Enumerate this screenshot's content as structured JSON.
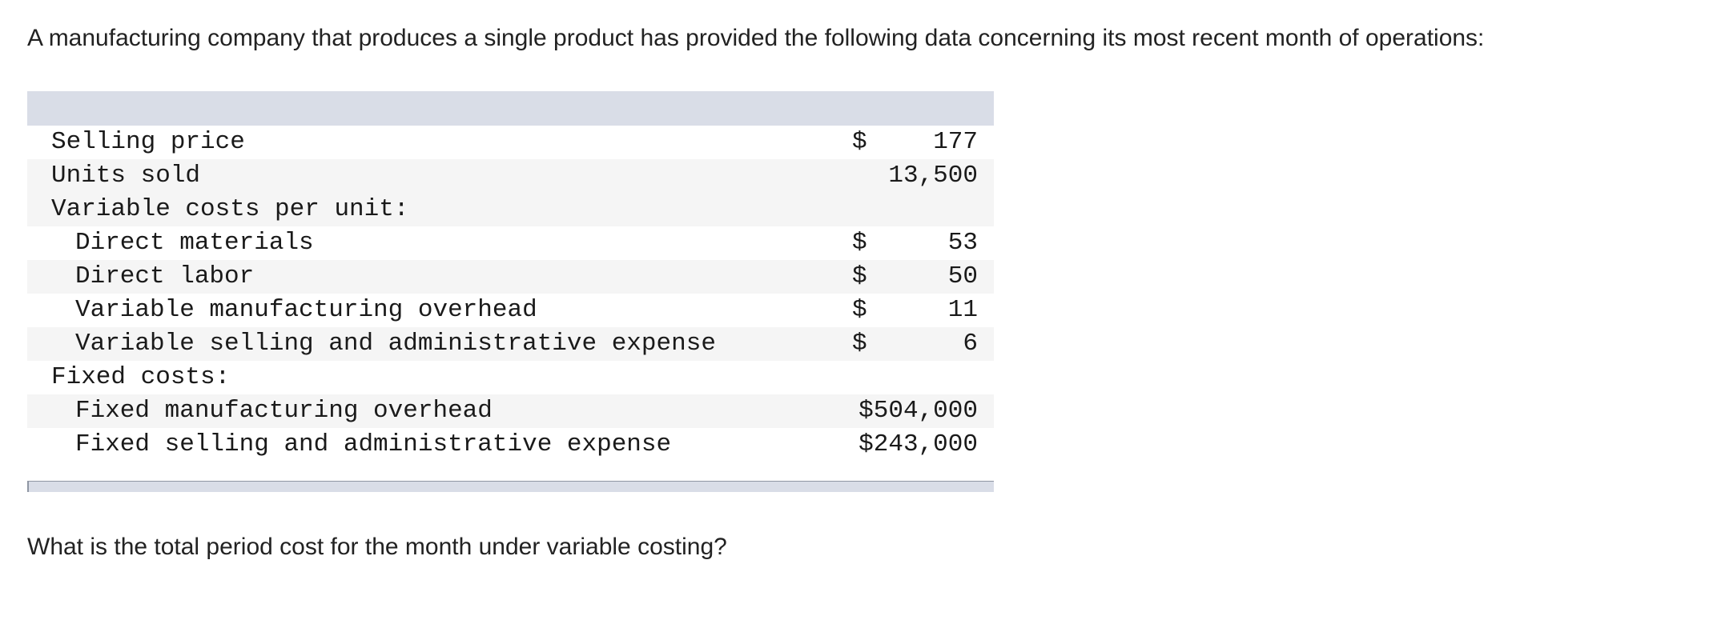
{
  "intro": "A manufacturing company that produces a single product has provided the following data concerning its most recent month of operations:",
  "table": {
    "rows": [
      {
        "label": "Selling price",
        "dollar": "$",
        "amount": "177"
      },
      {
        "label": "Units sold",
        "dollar": "",
        "amount": "13,500"
      },
      {
        "label": "Variable costs per unit:",
        "dollar": "",
        "amount": ""
      },
      {
        "label": "Direct materials",
        "dollar": "$",
        "amount": "53"
      },
      {
        "label": "Direct labor",
        "dollar": "$",
        "amount": "50"
      },
      {
        "label": "Variable manufacturing overhead",
        "dollar": "$",
        "amount": "11"
      },
      {
        "label": "Variable selling and administrative expense",
        "dollar": "$",
        "amount": "6"
      },
      {
        "label": "Fixed costs:",
        "dollar": "",
        "amount": ""
      },
      {
        "label": "Fixed manufacturing overhead",
        "dollar": "",
        "amount": "$504,000"
      },
      {
        "label": "Fixed selling and administrative expense",
        "dollar": "",
        "amount": "$243,000"
      }
    ]
  },
  "question": "What is the total period cost for the month under variable costing?"
}
